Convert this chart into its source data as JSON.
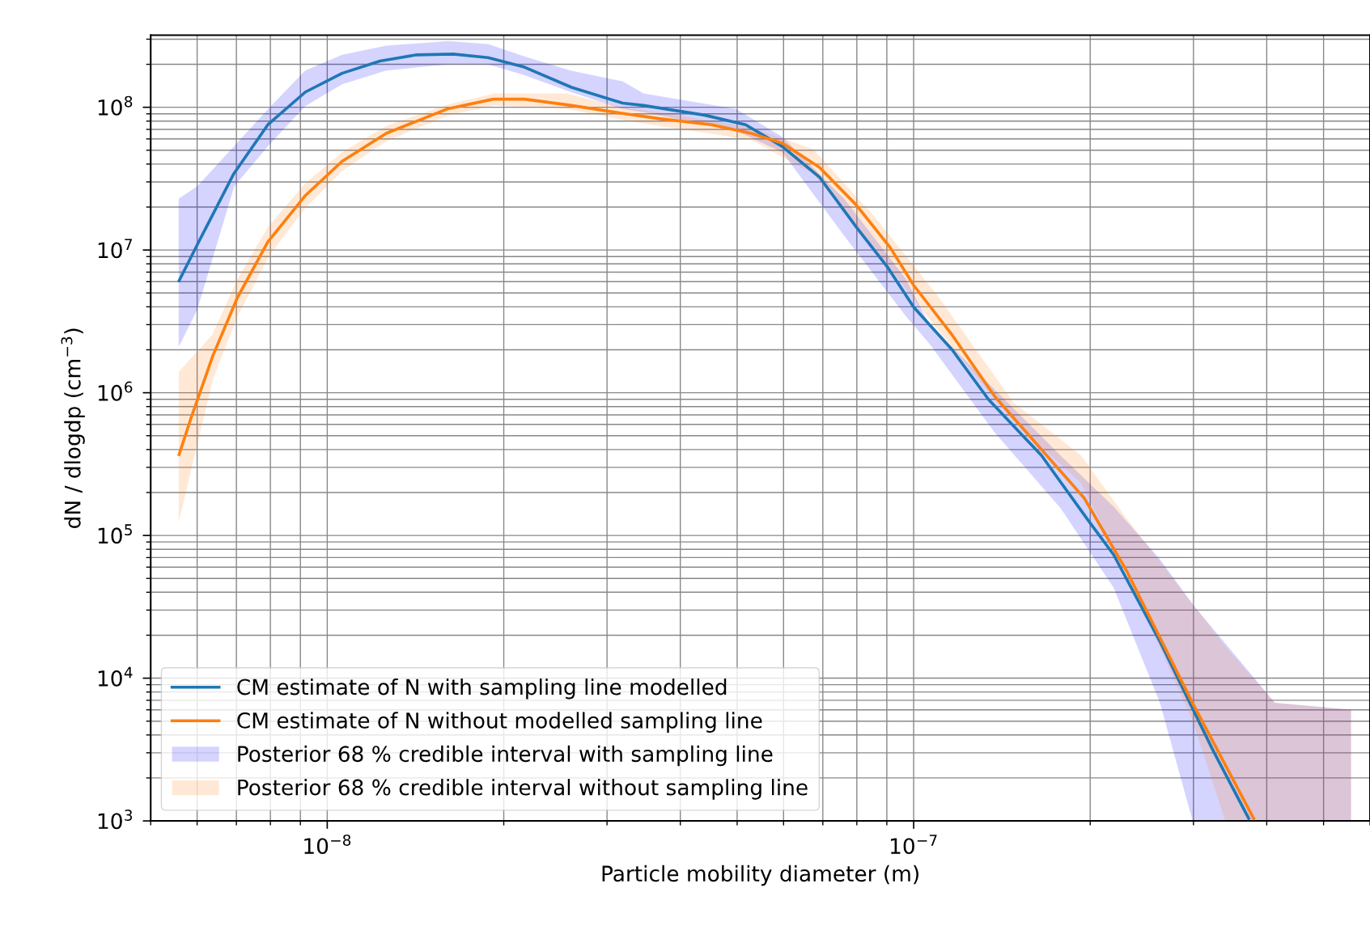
{
  "chart_data": {
    "type": "line",
    "xlabel": "Particle mobility diameter (m)",
    "ylabel": "dN / dlogdp (cm$^{−3}$)",
    "log": "xy",
    "grid": true,
    "legend": "lower left",
    "xlim": [
      5e-09,
      6e-07
    ],
    "ylim": [
      1000,
      320000000.0
    ],
    "xticks": [
      {
        "value": 1e-08,
        "label": "10$^{−8}$"
      },
      {
        "value": 1e-07,
        "label": "10$^{−7}$"
      }
    ],
    "yticks": [
      {
        "value": 1000,
        "label": "10$^{3}$"
      },
      {
        "value": 10000,
        "label": "10$^{4}$"
      },
      {
        "value": 100000,
        "label": "10$^{5}$"
      },
      {
        "value": 1000000,
        "label": "10$^{6}$"
      },
      {
        "value": 10000000,
        "label": "10$^{7}$"
      },
      {
        "value": 100000000,
        "label": "10$^{8}$"
      }
    ],
    "series": [
      {
        "name": "CM estimate of N with sampling line modelled",
        "color": "#1f77b4",
        "x": [
          5.59e-09,
          6.07e-09,
          6.93e-09,
          7.92e-09,
          9.18e-09,
          1.06e-08,
          1.23e-08,
          1.42e-08,
          1.64e-08,
          1.88e-08,
          2.17e-08,
          2.61e-08,
          3.19e-08,
          3.46e-08,
          4.4e-08,
          5.17e-08,
          5.97e-08,
          6.91e-08,
          7.98e-08,
          9.02e-08,
          1e-07,
          1.163e-07,
          1.342e-07,
          1.651e-07,
          1.975e-07,
          2.193e-07,
          2.624e-07,
          3.233e-07,
          3.727e-07
        ],
        "values": [
          6100000.0,
          11900000.0,
          34300000.0,
          75500000.0,
          128000000.0,
          173000000.0,
          211000000.0,
          233000000.0,
          236000000.0,
          223000000.0,
          191000000.0,
          138000000.0,
          107000000.0,
          103000000.0,
          88100000.0,
          75500000.0,
          53100000.0,
          32400000.0,
          14500000.0,
          7610000.0,
          3980000.0,
          2000000.0,
          896000.0,
          364000.0,
          131000.0,
          73200.0,
          18400.0,
          3170.0,
          1040.0
        ]
      },
      {
        "name": "CM estimate of N without modelled sampling line",
        "color": "#ff7f0e",
        "x": [
          5.59e-09,
          5.86e-09,
          6.38e-09,
          7.03e-09,
          7.92e-09,
          9.18e-09,
          1.06e-08,
          1.26e-08,
          1.6e-08,
          1.92e-08,
          2.17e-08,
          2.61e-08,
          3.19e-08,
          3.68e-08,
          4.52e-08,
          5.29e-08,
          5.97e-08,
          6.91e-08,
          7.98e-08,
          9.12e-08,
          1e-07,
          1.163e-07,
          1.375e-07,
          1.953e-07,
          2.31e-07,
          2.99e-07,
          3.8e-07
        ],
        "values": [
          369000.0,
          667000.0,
          1810000.0,
          4650000.0,
          11400000.0,
          24100000.0,
          41800000.0,
          65600000.0,
          97200000.0,
          114000000.0,
          114000000.0,
          103000000.0,
          90600000.0,
          83300000.0,
          75500000.0,
          65600000.0,
          56100000.0,
          37900000.0,
          20700000.0,
          10400000.0,
          5660000.0,
          2540000.0,
          941000.0,
          183000.0,
          56000.0,
          6690.0,
          1040.0
        ]
      },
      {
        "type": "area",
        "name": "Posterior 68 % credible interval with sampling line",
        "color": "#0000ff",
        "x": [
          5.58e-09,
          6e-09,
          6.94e-09,
          7.93e-09,
          9.17e-09,
          1.06e-08,
          1.26e-08,
          1.61e-08,
          1.88e-08,
          2.17e-08,
          2.6e-08,
          3.19e-08,
          3.46e-08,
          4.98e-08,
          5.97e-08,
          7.61e-08,
          9.7e-08,
          1.063e-07,
          1.375e-07,
          1.783e-07,
          2.193e-07,
          2.63e-07,
          2.99e-07,
          4.13e-07,
          5.57e-07
        ],
        "values": [
          null,
          null,
          null,
          null,
          null,
          null,
          null,
          null,
          null,
          null,
          null,
          null,
          null,
          null,
          null,
          null,
          null,
          null,
          null,
          null,
          null,
          null,
          null,
          null,
          null
        ],
        "upper": [
          22900000.0,
          27900000.0,
          53500000.0,
          97200000.0,
          181000000.0,
          233000000.0,
          270000000.0,
          291000000.0,
          277000000.0,
          227000000.0,
          181000000.0,
          152000000.0,
          125000000.0,
          97200000.0,
          62100000.0,
          22900000.0,
          6260000.0,
          3030000.0,
          1050000.0,
          361000.0,
          159000.0,
          68200.0,
          33000.0,
          6720.0,
          6010.0
        ],
        "lower": [
          2090000.0,
          3800000.0,
          27900000.0,
          53500000.0,
          102000000.0,
          145000000.0,
          181000000.0,
          200000000.0,
          200000000.0,
          168000000.0,
          128000000.0,
          97200000.0,
          92400000.0,
          68600000.0,
          48400000.0,
          12600000.0,
          3440000.0,
          2210000.0,
          525000.0,
          154000.0,
          43000.0,
          6720.0,
          1000,
          1000,
          1000
        ]
      },
      {
        "type": "area",
        "name": "Posterior 68 % credible interval without sampling line",
        "color": "#ff7f0e",
        "x": [
          5.58e-09,
          6.37e-09,
          7.03e-09,
          7.93e-09,
          9.17e-09,
          1.06e-08,
          1.26e-08,
          1.61e-08,
          1.93e-08,
          2.56e-08,
          3.19e-08,
          3.68e-08,
          5.29e-08,
          6.74e-08,
          8.59e-08,
          1.094e-07,
          1.482e-07,
          1.929e-07,
          2.31e-07,
          2.99e-07,
          3.4e-07,
          4.13e-07,
          5.57e-07
        ],
        "values": [
          null,
          null,
          null,
          null,
          null,
          null,
          null,
          null,
          null,
          null,
          null,
          null,
          null,
          null,
          null,
          null,
          null,
          null,
          null,
          null,
          null,
          null,
          null
        ],
        "upper": [
          1400000.0,
          2550000.0,
          6260000.0,
          14600000.0,
          29300000.0,
          48400000.0,
          73900000.0,
          105000000.0,
          125000000.0,
          125000000.0,
          99600000.0,
          92400000.0,
          72000000.0,
          50800000.0,
          17000000.0,
          4880000.0,
          850000.0,
          364000.0,
          131000.0,
          33000.0,
          16700.0,
          6720.0,
          6010.0
        ],
        "lower": [
          123000.0,
          1210000.0,
          3440000.0,
          8870000.0,
          19700000.0,
          35800000.0,
          57600000.0,
          88000000.0,
          103000000.0,
          97200000.0,
          81700000.0,
          73900000.0,
          59000000.0,
          34100000.0,
          10300000.0,
          2820000.0,
          631000.0,
          233000.0,
          53200.0,
          5050.0,
          1000,
          1000,
          1000
        ]
      }
    ]
  }
}
